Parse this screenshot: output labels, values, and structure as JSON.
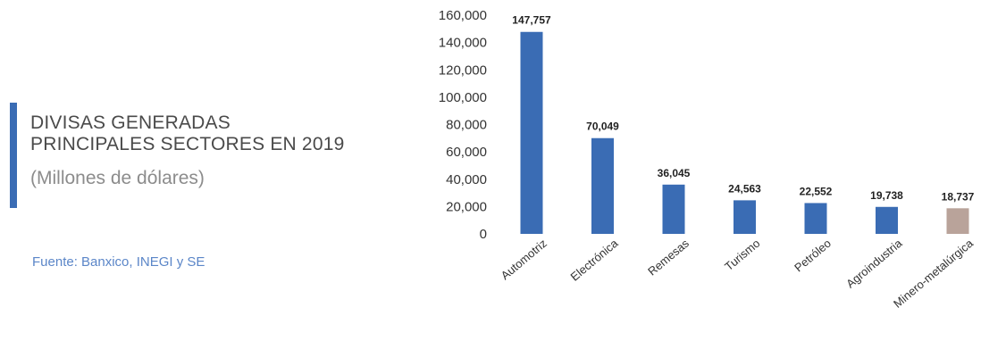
{
  "header": {
    "title_line1": "DIVISAS GENERADAS",
    "title_line2": "PRINCIPALES SECTORES EN 2019",
    "subtitle": "(Millones de dólares)",
    "source": "Fuente: Banxico, INEGI y SE"
  },
  "colors": {
    "accent": "#3a6cb4",
    "bar_primary": "#3a6cb4",
    "bar_highlight": "#b9a39a",
    "source_text": "#5b86c8"
  },
  "chart_data": {
    "type": "bar",
    "categories": [
      "Automotriz",
      "Electrónica",
      "Remesas",
      "Turismo",
      "Petróleo",
      "Agroindustria",
      "Minero-metalúrgica"
    ],
    "values": [
      147757,
      70049,
      36045,
      24563,
      22552,
      19738,
      18737
    ],
    "value_labels": [
      "147,757",
      "70,049",
      "36,045",
      "24,563",
      "22,552",
      "19,738",
      "18,737"
    ],
    "bar_colors": [
      "#3a6cb4",
      "#3a6cb4",
      "#3a6cb4",
      "#3a6cb4",
      "#3a6cb4",
      "#3a6cb4",
      "#b9a39a"
    ],
    "y_ticks": [
      0,
      20000,
      40000,
      60000,
      80000,
      100000,
      120000,
      140000,
      160000
    ],
    "y_tick_labels": [
      "0",
      "20,000",
      "40,000",
      "60,000",
      "80,000",
      "100,000",
      "120,000",
      "140,000",
      "160,000"
    ],
    "ylim": [
      0,
      160000
    ],
    "grid": false,
    "legend": "none"
  }
}
